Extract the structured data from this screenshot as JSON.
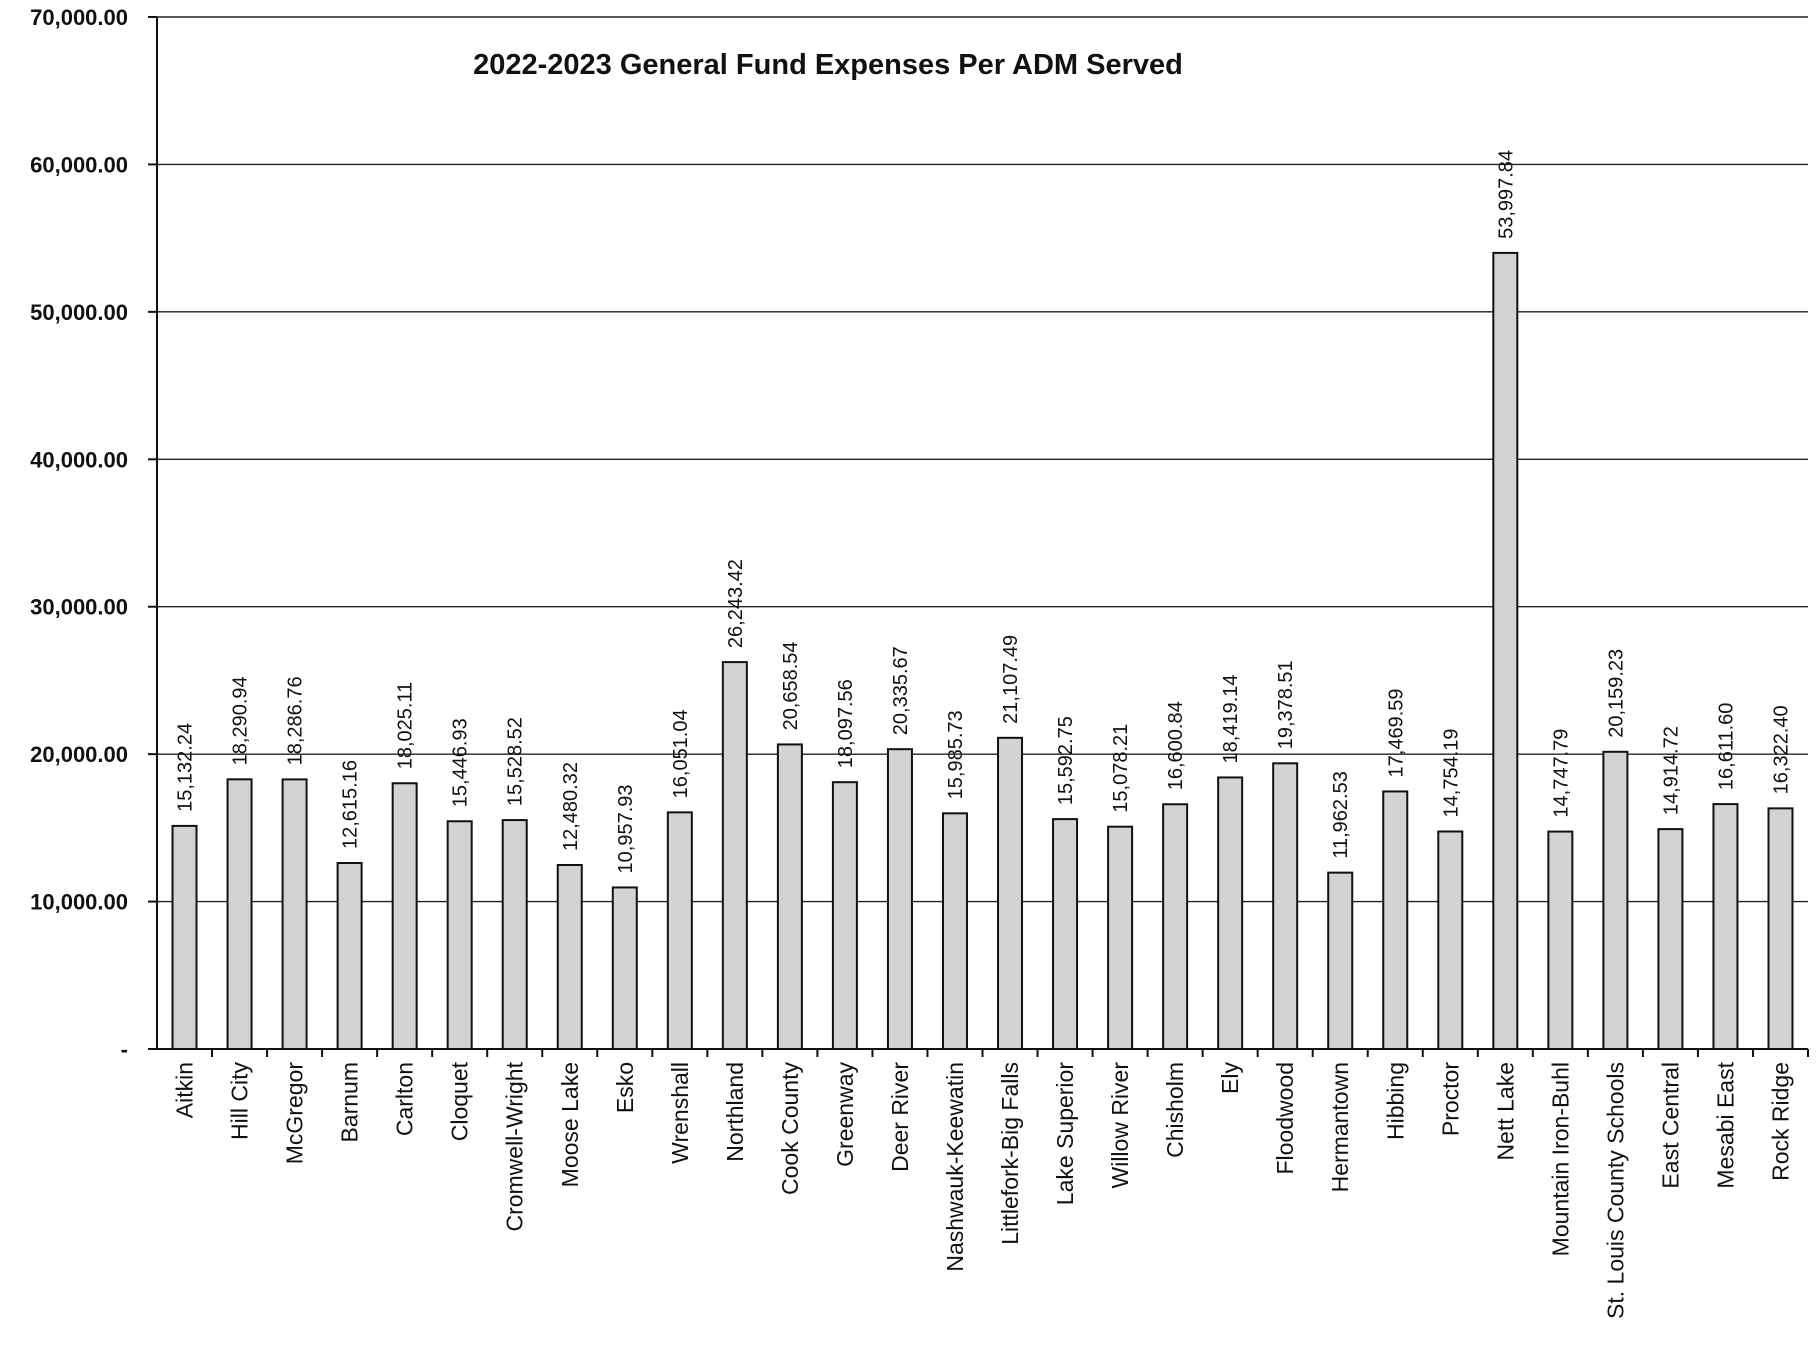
{
  "chart_data": {
    "type": "bar",
    "title": "2022-2023 General Fund Expenses Per ADM Served",
    "xlabel": "",
    "ylabel": "",
    "ylim": [
      0,
      70000
    ],
    "grid": true,
    "y_ticks": [
      {
        "value": 0,
        "label": "-"
      },
      {
        "value": 10000,
        "label": "10,000.00"
      },
      {
        "value": 20000,
        "label": "20,000.00"
      },
      {
        "value": 30000,
        "label": "30,000.00"
      },
      {
        "value": 40000,
        "label": "40,000.00"
      },
      {
        "value": 50000,
        "label": "50,000.00"
      },
      {
        "value": 60000,
        "label": "60,000.00"
      },
      {
        "value": 70000,
        "label": "70,000.00"
      }
    ],
    "categories": [
      "Aitkin",
      "Hill City",
      "McGregor",
      "Barnum",
      "Carlton",
      "Cloquet",
      "Cromwell-Wright",
      "Moose Lake",
      "Esko",
      "Wrenshall",
      "Northland",
      "Cook County",
      "Greenway",
      "Deer River",
      "Nashwauk-Keewatin",
      "Littlefork-Big Falls",
      "Lake Superior",
      "Willow River",
      "Chisholm",
      "Ely",
      "Floodwood",
      "Hermantown",
      "Hibbing",
      "Proctor",
      "Nett Lake",
      "Mountain Iron-Buhl",
      "St. Louis County Schools",
      "East Central",
      "Mesabi East",
      "Rock Ridge"
    ],
    "values": [
      15132.24,
      18290.94,
      18286.76,
      12615.16,
      18025.11,
      15446.93,
      15528.52,
      12480.32,
      10957.93,
      16051.04,
      26243.42,
      20658.54,
      18097.56,
      20335.67,
      15985.73,
      21107.49,
      15592.75,
      15078.21,
      16600.84,
      18419.14,
      19378.51,
      11962.53,
      17469.59,
      14754.19,
      53997.84,
      14747.79,
      20159.23,
      14914.72,
      16611.6,
      16322.4
    ],
    "data_labels": [
      "15,132.24",
      "18,290.94",
      "18,286.76",
      "12,615.16",
      "18,025.11",
      "15,446.93",
      "15,528.52",
      "12,480.32",
      "10,957.93",
      "16,051.04",
      "26,243.42",
      "20,658.54",
      "18,097.56",
      "20,335.67",
      "15,985.73",
      "21,107.49",
      "15,592.75",
      "15,078.21",
      "16,600.84",
      "18,419.14",
      "19,378.51",
      "11,962.53",
      "17,469.59",
      "14,754.19",
      "53,997.84",
      "14,747.79",
      "20,159.23",
      "14,914.72",
      "16,611.60",
      "16,322.40"
    ]
  }
}
